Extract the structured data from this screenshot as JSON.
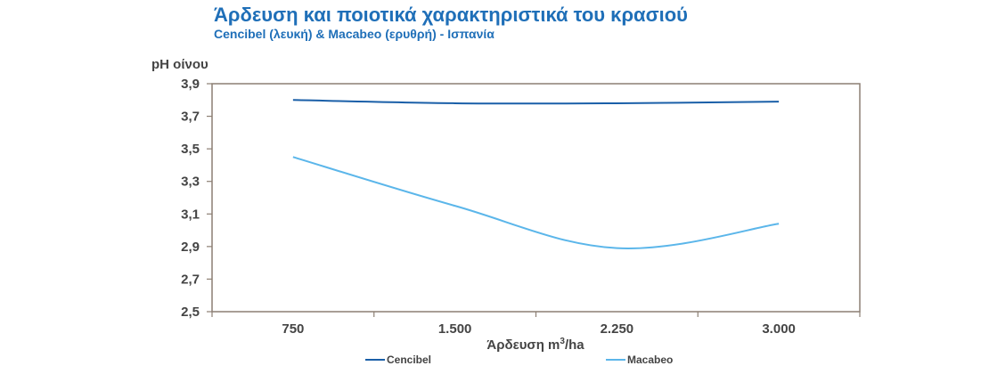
{
  "chart_data": {
    "type": "line",
    "title": "Άρδευση και ποιοτικά χαρακτηριστικά του κρασιού",
    "subtitle": "Cencibel (λευκή) & Macabeo (ερυθρή) - Ισπανία",
    "ylabel": "pH οίνου",
    "xlabel_main": "Άρδευση m",
    "xlabel_sup": "3",
    "xlabel_tail": "/ha",
    "categories": [
      "750",
      "1.500",
      "2.250",
      "3.000"
    ],
    "ylim": [
      2.5,
      3.9
    ],
    "yticks": [
      3.9,
      3.7,
      3.5,
      3.3,
      3.1,
      2.9,
      2.7,
      2.5
    ],
    "ytick_labels": [
      "3,9",
      "3,7",
      "3,5",
      "3,3",
      "3,1",
      "2,9",
      "2,7",
      "2,5"
    ],
    "grid": false,
    "legend_position": "bottom",
    "series": [
      {
        "name": "Cencibel",
        "color": "#1a5fa8",
        "values": [
          3.8,
          3.78,
          3.78,
          3.79
        ]
      },
      {
        "name": "Macabeo",
        "color": "#5bb6ea",
        "values": [
          3.45,
          3.15,
          2.89,
          3.04
        ]
      }
    ]
  }
}
